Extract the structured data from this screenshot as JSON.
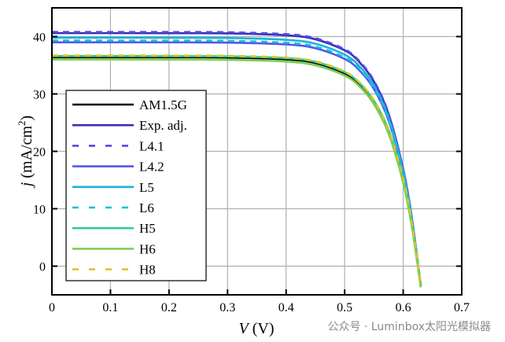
{
  "chart_data": {
    "type": "line",
    "title": "",
    "xlabel": "V (V)",
    "xlabel_var": "V",
    "xlabel_unit": "(V)",
    "ylabel_var": "j",
    "ylabel_unit": "(mA/cm",
    "ylabel_sup": "2",
    "ylabel_close": ")",
    "xlim": [
      0,
      0.7
    ],
    "ylim": [
      -5,
      45
    ],
    "xticks": [
      "0",
      "0.1",
      "0.2",
      "0.3",
      "0.4",
      "0.5",
      "0.6",
      "0.7"
    ],
    "yticks": [
      "0",
      "10",
      "20",
      "30",
      "40"
    ],
    "grid": true,
    "legend_position": "left",
    "x": [
      0,
      0.1,
      0.2,
      0.3,
      0.4,
      0.45,
      0.5,
      0.525,
      0.55,
      0.575,
      0.6,
      0.615,
      0.63
    ],
    "series": [
      {
        "name": "AM1.5G",
        "color": "#000000",
        "dash": false,
        "values": [
          36.4,
          36.4,
          36.39,
          36.35,
          36.04,
          35.39,
          33.6,
          31.74,
          28.63,
          23.5,
          14.9,
          7.1,
          -3.3
        ]
      },
      {
        "name": "Exp. adj.",
        "color": "#3a2db4",
        "dash": false,
        "values": [
          40.6,
          40.6,
          40.59,
          40.55,
          40.22,
          39.53,
          37.6,
          35.57,
          32.17,
          26.5,
          16.9,
          8.3,
          -3.4
        ]
      },
      {
        "name": "L4.1",
        "color": "#4b4cec",
        "dash": true,
        "values": [
          40.8,
          40.8,
          40.79,
          40.75,
          40.42,
          39.72,
          37.78,
          35.73,
          32.31,
          26.6,
          16.93,
          8.27,
          -3.5
        ]
      },
      {
        "name": "L4.2",
        "color": "#5057f0",
        "dash": false,
        "values": [
          39.0,
          39.0,
          38.99,
          38.95,
          38.63,
          37.97,
          36.1,
          34.14,
          30.86,
          25.38,
          16.1,
          7.8,
          -3.5
        ]
      },
      {
        "name": "L5",
        "color": "#1bb3d9",
        "dash": false,
        "values": [
          39.8,
          39.8,
          39.79,
          39.75,
          39.43,
          38.75,
          36.85,
          34.85,
          31.5,
          25.9,
          16.5,
          8.0,
          -3.5
        ]
      },
      {
        "name": "L6",
        "color": "#1fbdd6",
        "dash": true,
        "values": [
          39.3,
          39.3,
          39.29,
          39.25,
          38.93,
          38.26,
          36.38,
          34.41,
          31.1,
          25.58,
          16.24,
          7.87,
          -3.5
        ]
      },
      {
        "name": "H5",
        "color": "#34c99b",
        "dash": false,
        "values": [
          36.6,
          36.6,
          36.59,
          36.55,
          36.24,
          35.59,
          33.8,
          31.94,
          28.83,
          23.7,
          15.1,
          7.3,
          -3.1
        ]
      },
      {
        "name": "H6",
        "color": "#7ccf4f",
        "dash": false,
        "values": [
          36.0,
          36.0,
          35.99,
          35.95,
          35.64,
          34.99,
          33.2,
          31.34,
          28.23,
          23.1,
          14.5,
          6.7,
          -3.7
        ]
      },
      {
        "name": "H8",
        "color": "#e2c12a",
        "dash": true,
        "values": [
          36.7,
          36.7,
          36.69,
          36.65,
          36.34,
          35.69,
          33.9,
          32.04,
          28.93,
          23.8,
          15.2,
          7.4,
          -3.0
        ]
      }
    ]
  },
  "watermark": "公众号 · Luminbox太阳光模拟器"
}
